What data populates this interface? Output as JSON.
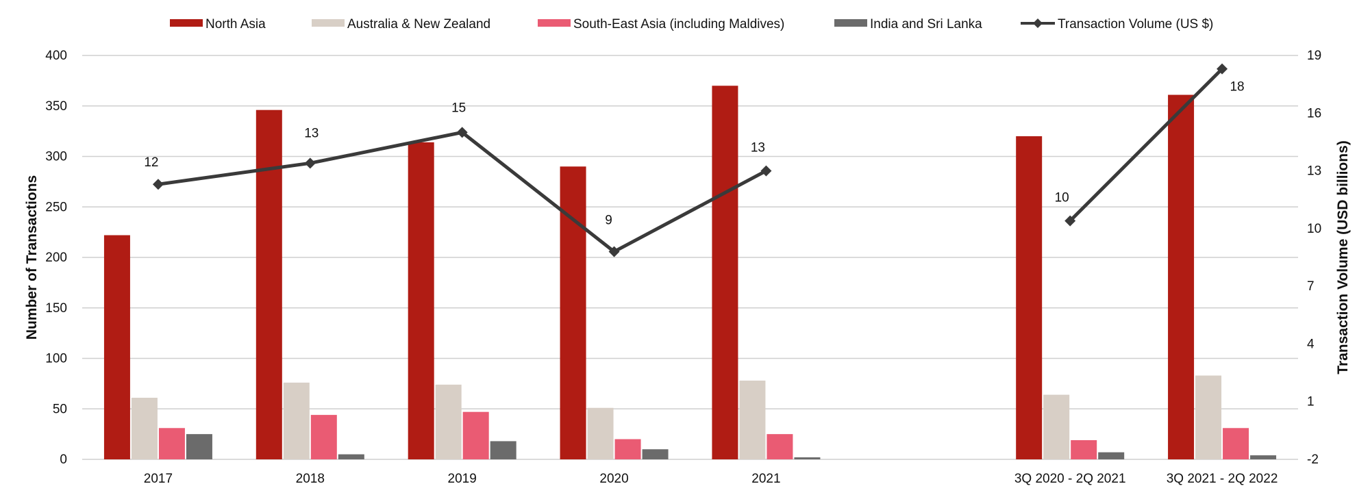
{
  "chart_data": {
    "type": "bar",
    "categories": [
      "2017",
      "2018",
      "2019",
      "2020",
      "2021",
      "",
      "3Q 2020 - 2Q 2021",
      "3Q 2021 - 2Q 2022"
    ],
    "series": [
      {
        "name": "North Asia",
        "color": "#B01C14",
        "values": [
          222,
          346,
          314,
          290,
          370,
          null,
          320,
          361
        ]
      },
      {
        "name": "Australia & New Zealand",
        "color": "#D8CFC6",
        "values": [
          61,
          76,
          74,
          51,
          78,
          null,
          64,
          83
        ]
      },
      {
        "name": "South-East Asia (including Maldives)",
        "color": "#EA5B73",
        "values": [
          31,
          44,
          47,
          20,
          25,
          null,
          19,
          31
        ]
      },
      {
        "name": "India and Sri Lanka",
        "color": "#6B6B6B",
        "values": [
          25,
          5,
          18,
          10,
          2,
          null,
          7,
          4
        ]
      }
    ],
    "line_series": {
      "name": "Transaction Volume (US $)",
      "color": "#3A3A3A",
      "values": [
        12.3,
        13.4,
        15.0,
        8.8,
        13.0,
        null,
        10.4,
        18.3
      ],
      "labels": [
        "12",
        "13",
        "15",
        "9",
        "13",
        "",
        "10",
        "18"
      ]
    },
    "ylabel": "Number of Transactions",
    "y2label": "Transaction Volume (USD billions)",
    "ylim": [
      0,
      400
    ],
    "yticks": [
      "0",
      "50",
      "100",
      "150",
      "200",
      "250",
      "300",
      "350",
      "400"
    ],
    "y2lim": [
      -2,
      19
    ],
    "y2ticks": [
      "-2",
      "1",
      "4",
      "7",
      "10",
      "13",
      "16",
      "19"
    ],
    "grid": true,
    "legend_position": "top"
  }
}
